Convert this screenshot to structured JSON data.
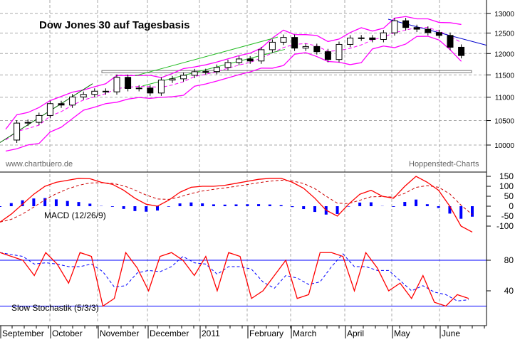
{
  "chart_data": [
    {
      "type": "candlestick",
      "title": "Dow Jones 30 auf Tagesbasis",
      "source_left": "www.chartbuero.de",
      "source_right": "Hoppenstedt-Charts",
      "y_scale": "log",
      "ylim": [
        9800,
        13300
      ],
      "y_ticks": [
        "13000",
        "12500",
        "12000",
        "11500",
        "11000",
        "10500",
        "10000"
      ],
      "grid": true,
      "support_zone": [
        11550,
        11600
      ],
      "colors": {
        "candles": "#000000",
        "bollinger": "#ff00ff",
        "trend": "#22bb22",
        "grid": "#aaaaaa"
      },
      "x_months": [
        "September",
        "October",
        "November",
        "December",
        "2011",
        "February",
        "March",
        "April",
        "May",
        "June"
      ],
      "weekly_close": [
        10100,
        10447,
        10462,
        10607,
        10860,
        10829,
        11006,
        11062,
        11132,
        11118,
        11444,
        11192,
        11203,
        11092,
        11382,
        11410,
        11491,
        11573,
        11577,
        11674,
        11787,
        11871,
        11823,
        12092,
        12273,
        12391,
        12130,
        12169,
        12044,
        11858,
        12220,
        12376,
        12380,
        12341,
        12505,
        12810,
        12638,
        12596,
        12512,
        12441,
        12151,
        11952
      ]
    },
    {
      "type": "line",
      "label": "MACD (12/26/9)",
      "y_ticks": [
        "150",
        "100",
        "50",
        "0",
        "-50",
        "-100"
      ],
      "ylim": [
        -150,
        160
      ],
      "colors": {
        "macd": "#ff0000",
        "signal": "#cc0000",
        "histogram": "#0000ff"
      },
      "macd": [
        -80,
        -40,
        10,
        60,
        100,
        120,
        130,
        140,
        138,
        120,
        110,
        80,
        40,
        10,
        0,
        30,
        70,
        95,
        100,
        100,
        105,
        115,
        125,
        135,
        140,
        140,
        120,
        90,
        40,
        -20,
        -50,
        10,
        60,
        80,
        50,
        40,
        100,
        150,
        120,
        80,
        0,
        -100,
        -130
      ]
    },
    {
      "type": "line",
      "label": "Slow Stochastik (5/3/3)",
      "y_ticks": [
        "80",
        "40"
      ],
      "ylim": [
        0,
        100
      ],
      "levels": [
        80,
        20
      ],
      "colors": {
        "k": "#ff0000",
        "d": "#0000ff",
        "levels": "#0000ff"
      },
      "k": [
        90,
        85,
        80,
        60,
        90,
        75,
        50,
        90,
        85,
        20,
        30,
        90,
        70,
        40,
        85,
        90,
        80,
        60,
        85,
        40,
        90,
        85,
        30,
        40,
        60,
        80,
        30,
        35,
        90,
        90,
        85,
        40,
        90,
        70,
        40,
        50,
        30,
        60,
        25,
        20,
        35,
        30
      ]
    }
  ]
}
